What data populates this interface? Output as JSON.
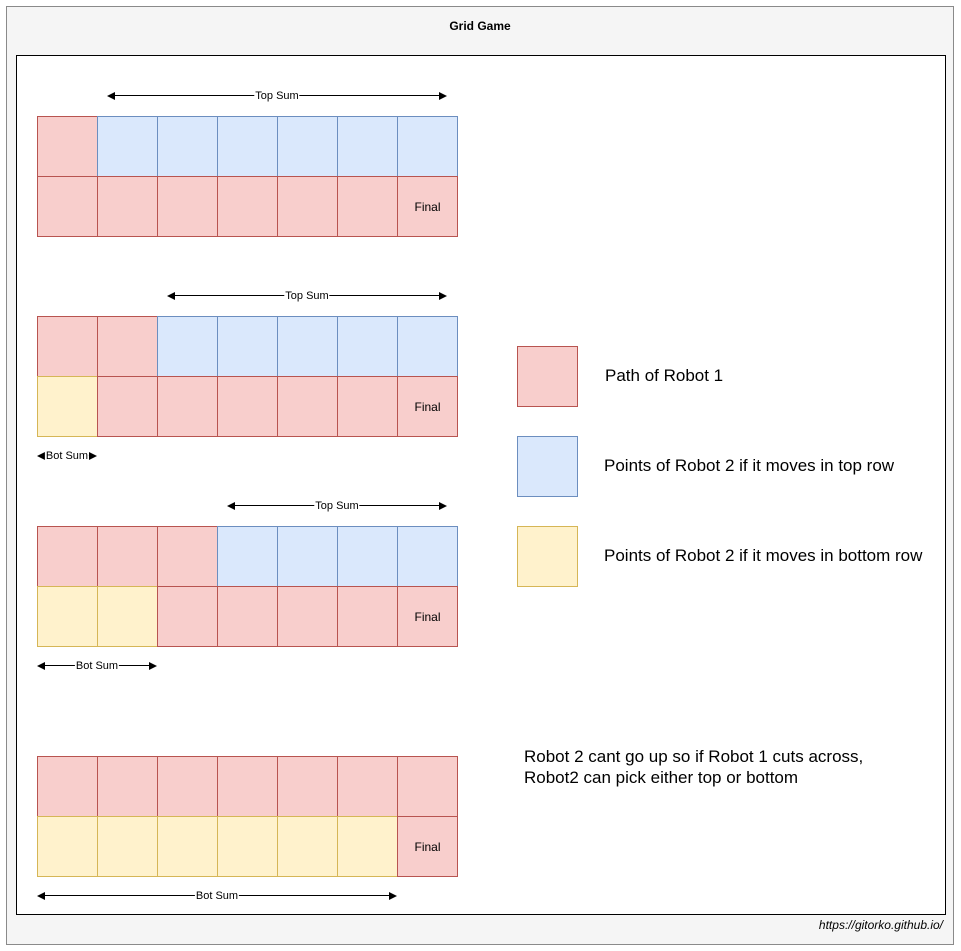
{
  "title": "Grid Game",
  "footer": "https://gitorko.github.io/",
  "final_label": "Final",
  "colors": {
    "red": "#f8cecc",
    "blue": "#dae8fc",
    "yellow": "#fff2cc"
  },
  "grids": [
    {
      "top": [
        "red",
        "blue",
        "blue",
        "blue",
        "blue",
        "blue",
        "blue"
      ],
      "bottom": [
        "red",
        "red",
        "red",
        "red",
        "red",
        "red",
        "red"
      ],
      "top_sum_label": "Top Sum",
      "bot_sum_label": ""
    },
    {
      "top": [
        "red",
        "red",
        "blue",
        "blue",
        "blue",
        "blue",
        "blue"
      ],
      "bottom": [
        "yellow",
        "red",
        "red",
        "red",
        "red",
        "red",
        "red"
      ],
      "top_sum_label": "Top Sum",
      "bot_sum_label": "Bot Sum"
    },
    {
      "top": [
        "red",
        "red",
        "red",
        "blue",
        "blue",
        "blue",
        "blue"
      ],
      "bottom": [
        "yellow",
        "yellow",
        "red",
        "red",
        "red",
        "red",
        "red"
      ],
      "top_sum_label": "Top Sum",
      "bot_sum_label": "Bot Sum"
    },
    {
      "top": [
        "red",
        "red",
        "red",
        "red",
        "red",
        "red",
        "red"
      ],
      "bottom": [
        "yellow",
        "yellow",
        "yellow",
        "yellow",
        "yellow",
        "yellow",
        "red"
      ],
      "top_sum_label": "",
      "bot_sum_label": "Bot Sum"
    }
  ],
  "legend": [
    {
      "color": "red",
      "label": "Path of Robot 1"
    },
    {
      "color": "blue",
      "label": "Points of Robot 2 if it moves in top row"
    },
    {
      "color": "yellow",
      "label": "Points of Robot 2 if it moves in bottom row"
    }
  ],
  "note_lines": [
    "Robot 2 cant go up so if Robot 1 cuts across,",
    "Robot2 can pick either top or bottom"
  ]
}
